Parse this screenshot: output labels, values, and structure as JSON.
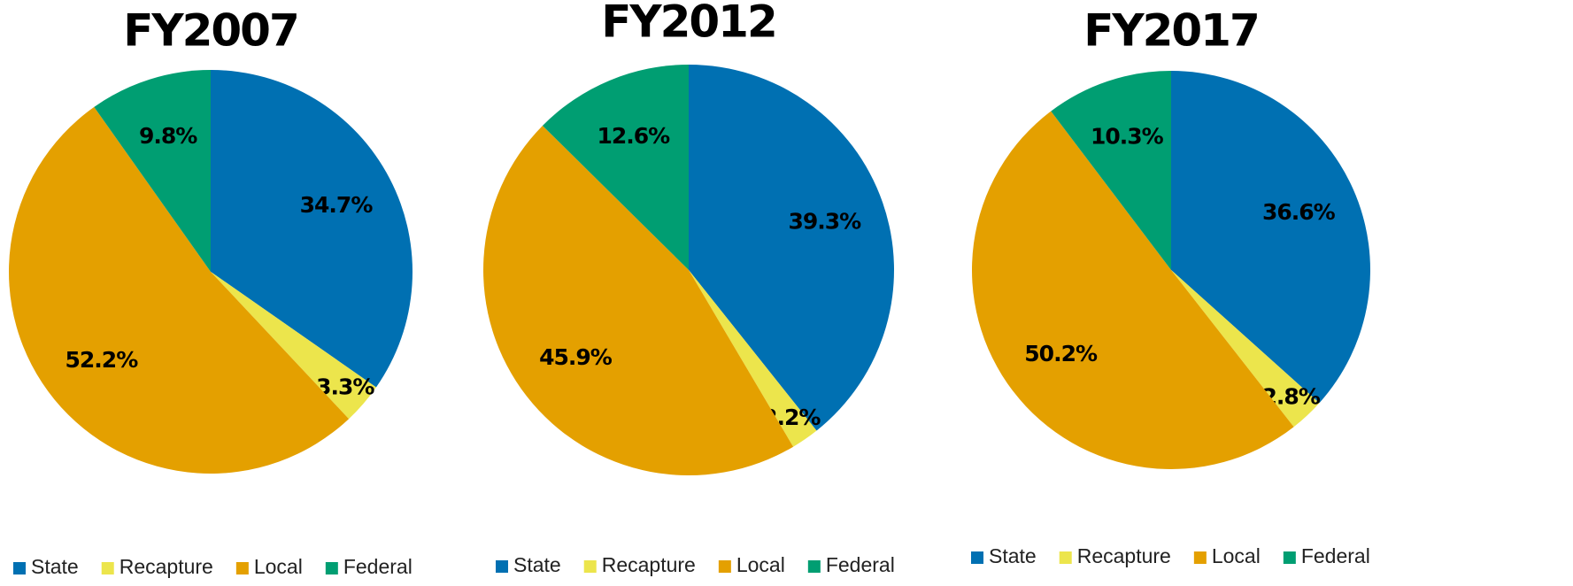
{
  "chart_data": [
    {
      "type": "pie",
      "title": "FY2007",
      "categories": [
        "State",
        "Recapture",
        "Local",
        "Federal"
      ],
      "values": [
        34.7,
        3.3,
        52.2,
        9.8
      ],
      "value_labels": [
        "34.7%",
        "3.3%",
        "52.2%",
        "9.8%"
      ],
      "colors": [
        "#0070b2",
        "#ece54c",
        "#e4a000",
        "#009e72"
      ]
    },
    {
      "type": "pie",
      "title": "FY2012",
      "categories": [
        "State",
        "Recapture",
        "Local",
        "Federal"
      ],
      "values": [
        39.3,
        2.2,
        45.9,
        12.6
      ],
      "value_labels": [
        "39.3%",
        "2.2%",
        "45.9%",
        "12.6%"
      ],
      "colors": [
        "#0070b2",
        "#ece54c",
        "#e4a000",
        "#009e72"
      ]
    },
    {
      "type": "pie",
      "title": "FY2017",
      "categories": [
        "State",
        "Recapture",
        "Local",
        "Federal"
      ],
      "values": [
        36.6,
        2.8,
        50.2,
        10.3
      ],
      "value_labels": [
        "36.6%",
        "2.8%",
        "50.2%",
        "10.3%"
      ],
      "colors": [
        "#0070b2",
        "#ece54c",
        "#e4a000",
        "#009e72"
      ]
    }
  ]
}
